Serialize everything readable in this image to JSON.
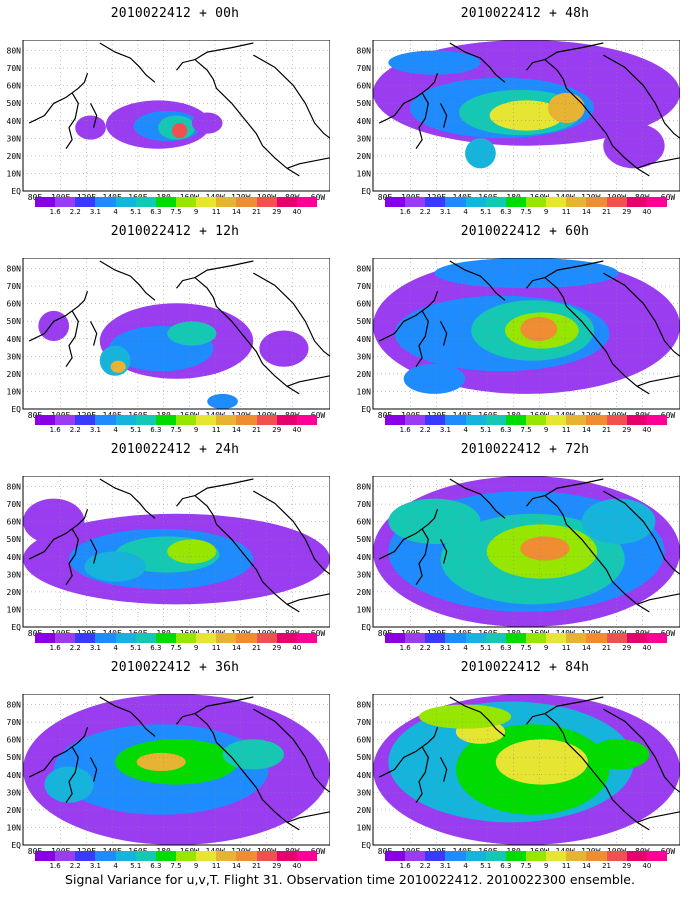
{
  "panels": [
    {
      "title": "2010022412 + 00h"
    },
    {
      "title": "2010022412 + 48h"
    },
    {
      "title": "2010022412 + 12h"
    },
    {
      "title": "2010022412 + 60h"
    },
    {
      "title": "2010022412 + 24h"
    },
    {
      "title": "2010022412 + 72h"
    },
    {
      "title": "2010022412 + 36h"
    },
    {
      "title": "2010022412 + 84h"
    }
  ],
  "axes": {
    "lon_labels": [
      "80E",
      "100E",
      "120E",
      "140E",
      "160E",
      "180",
      "160W",
      "140W",
      "120W",
      "100W",
      "80W",
      "60W"
    ],
    "lat_labels": [
      "EQ",
      "10N",
      "20N",
      "30N",
      "40N",
      "50N",
      "60N",
      "70N",
      "80N"
    ]
  },
  "colorbar": {
    "labels": [
      "1.6",
      "2.2",
      "3.1",
      "4",
      "5.1",
      "6.3",
      "7.5",
      "9",
      "11",
      "14",
      "21",
      "29",
      "40"
    ],
    "colors": [
      "#8a00e6",
      "#9a3cf0",
      "#3a3aff",
      "#1e8cff",
      "#14b4dc",
      "#14c8b4",
      "#00dc00",
      "#96e600",
      "#e6e632",
      "#e6b432",
      "#f08c32",
      "#f05050",
      "#e6006e",
      "#ff0096"
    ]
  },
  "caption": "Signal Variance for u,v,T. Flight 31. Observation time 2010022412. 2010022300 ensemble."
}
